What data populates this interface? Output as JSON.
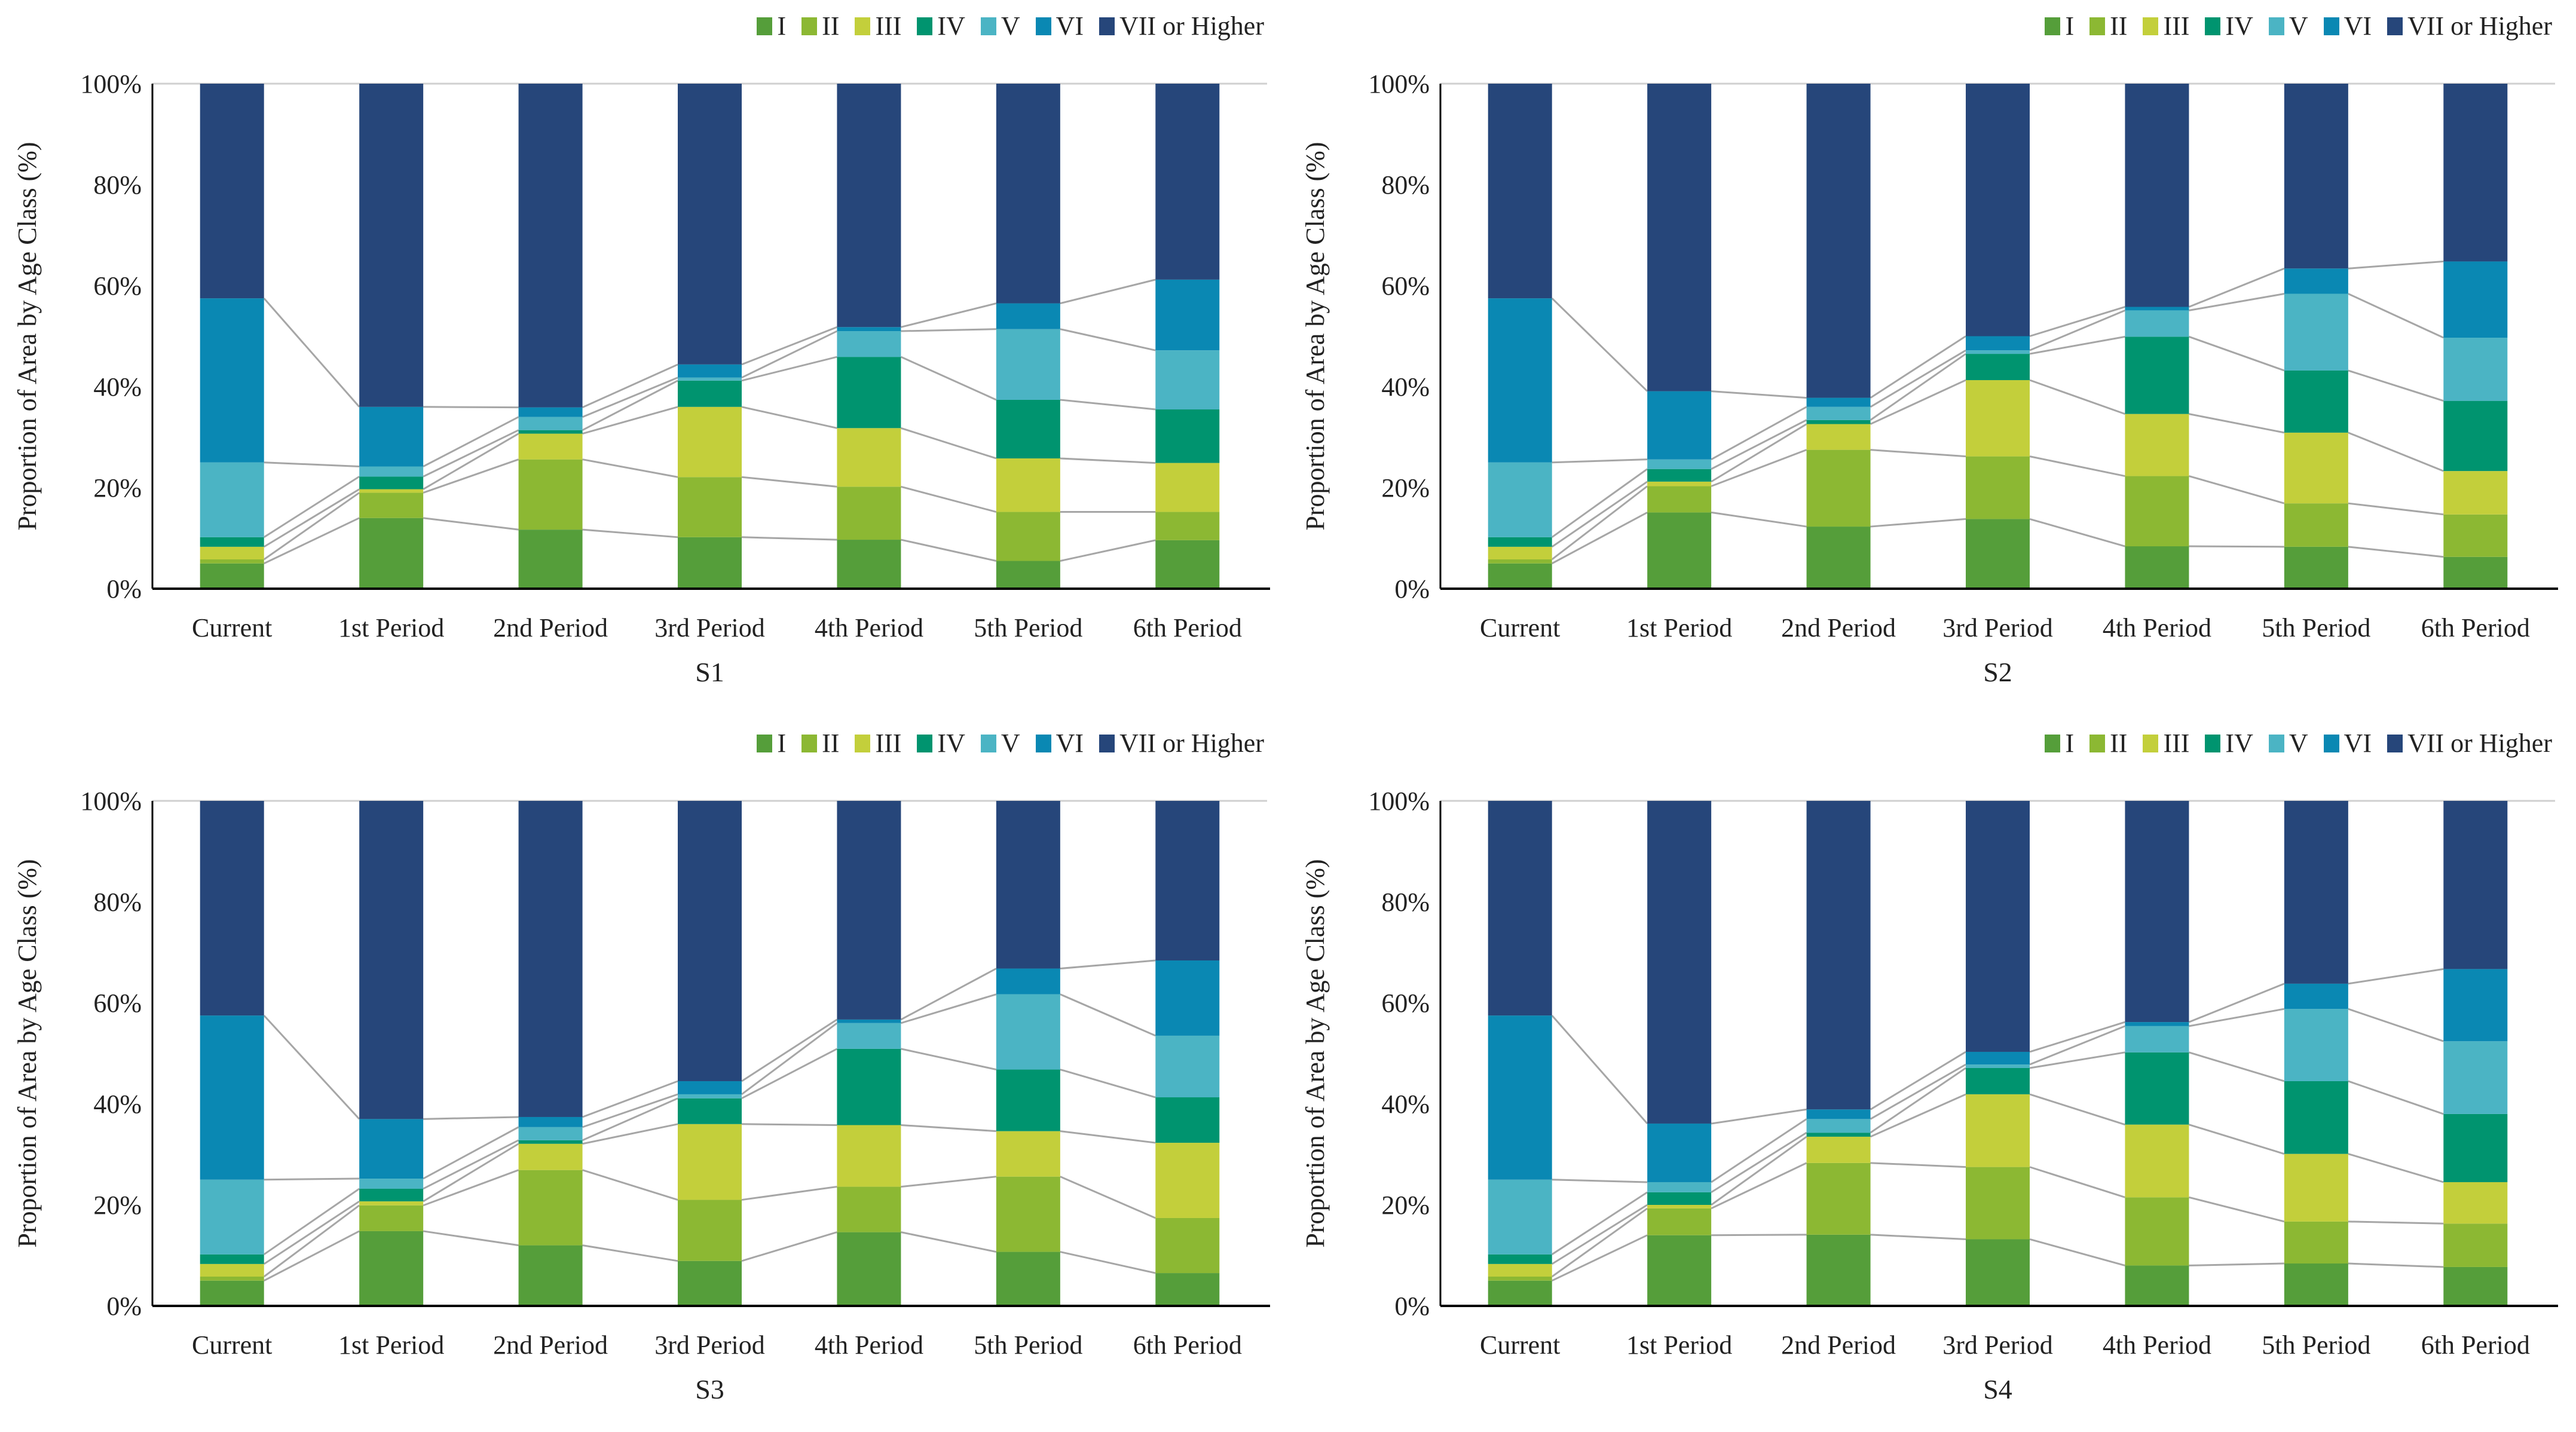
{
  "colors": {
    "I": "#559E3A",
    "II": "#8CB833",
    "III": "#C3CF3B",
    "IV": "#00946F",
    "V": "#4BB4C4",
    "VI": "#0A88B3",
    "VII or Higher": "#26467A",
    "connector": "#A6A6A6",
    "axis": "#000000"
  },
  "chart_data": [
    {
      "type": "bar",
      "stacked": true,
      "title": "S1",
      "ylabel": "Proportion of Area by Age Class (%)",
      "ylim": [
        0,
        100
      ],
      "yticks": [
        "0%",
        "20%",
        "40%",
        "60%",
        "80%",
        "100%"
      ],
      "legend_position": "top-right",
      "categories": [
        "Current",
        "1st Period",
        "2nd Period",
        "3rd Period",
        "4th Period",
        "5th Period",
        "6th Period"
      ],
      "series": [
        {
          "name": "I",
          "values": [
            5,
            14,
            11.7,
            10.2,
            9.7,
            5.5,
            9.6
          ]
        },
        {
          "name": "II",
          "values": [
            0.8,
            5,
            13.9,
            11.9,
            10.5,
            9.7,
            5.6
          ]
        },
        {
          "name": "III",
          "values": [
            2.5,
            0.7,
            5.1,
            13.9,
            11.6,
            10.6,
            9.7
          ]
        },
        {
          "name": "IV",
          "values": [
            1.9,
            2.5,
            0.7,
            5.2,
            14.1,
            11.6,
            10.6
          ]
        },
        {
          "name": "V",
          "values": [
            14.8,
            2,
            2.6,
            0.6,
            5.1,
            14,
            11.7
          ]
        },
        {
          "name": "VI",
          "values": [
            32.5,
            11.8,
            1.9,
            2.6,
            0.8,
            5.1,
            14
          ]
        },
        {
          "name": "VII or Higher",
          "values": [
            42.5,
            64,
            64.1,
            55.6,
            48.2,
            43.5,
            38.8
          ]
        }
      ]
    },
    {
      "type": "bar",
      "stacked": true,
      "title": "S2",
      "ylabel": "Proportion of Area by Age Class (%)",
      "ylim": [
        0,
        100
      ],
      "yticks": [
        "0%",
        "20%",
        "40%",
        "60%",
        "80%",
        "100%"
      ],
      "legend_position": "top-right",
      "categories": [
        "Current",
        "1st Period",
        "2nd Period",
        "3rd Period",
        "4th Period",
        "5th Period",
        "6th Period"
      ],
      "series": [
        {
          "name": "I",
          "values": [
            5,
            15.1,
            12.3,
            13.8,
            8.4,
            8.3,
            6.3
          ]
        },
        {
          "name": "II",
          "values": [
            0.8,
            5.2,
            15.2,
            12.4,
            13.9,
            8.6,
            8.4
          ]
        },
        {
          "name": "III",
          "values": [
            2.5,
            0.9,
            5.1,
            15.1,
            12.3,
            14,
            8.6
          ]
        },
        {
          "name": "IV",
          "values": [
            1.9,
            2.5,
            0.8,
            5.2,
            15.3,
            12.3,
            13.9
          ]
        },
        {
          "name": "V",
          "values": [
            14.8,
            1.9,
            2.6,
            0.7,
            5.2,
            15.2,
            12.5
          ]
        },
        {
          "name": "VI",
          "values": [
            32.5,
            13.5,
            1.8,
            2.8,
            0.7,
            5,
            15.1
          ]
        },
        {
          "name": "VII or Higher",
          "values": [
            42.5,
            60.9,
            62.2,
            50,
            44.2,
            36.6,
            35.2
          ]
        }
      ]
    },
    {
      "type": "bar",
      "stacked": true,
      "title": "S3",
      "ylabel": "Proportion of Area by Age Class (%)",
      "ylim": [
        0,
        100
      ],
      "yticks": [
        "0%",
        "20%",
        "40%",
        "60%",
        "80%",
        "100%"
      ],
      "legend_position": "top-right",
      "categories": [
        "Current",
        "1st Period",
        "2nd Period",
        "3rd Period",
        "4th Period",
        "5th Period",
        "6th Period"
      ],
      "series": [
        {
          "name": "I",
          "values": [
            5,
            14.8,
            12,
            8.9,
            14.6,
            10.7,
            6.5
          ]
        },
        {
          "name": "II",
          "values": [
            0.8,
            5.1,
            14.9,
            12.1,
            9,
            14.9,
            10.9
          ]
        },
        {
          "name": "III",
          "values": [
            2.5,
            0.8,
            5.2,
            15,
            12.2,
            9,
            14.9
          ]
        },
        {
          "name": "IV",
          "values": [
            1.9,
            2.5,
            0.7,
            5.1,
            15.1,
            12.2,
            9
          ]
        },
        {
          "name": "V",
          "values": [
            14.8,
            2,
            2.6,
            0.8,
            5.1,
            14.9,
            12.2
          ]
        },
        {
          "name": "VI",
          "values": [
            32.5,
            11.8,
            2,
            2.6,
            0.7,
            5.1,
            14.9
          ]
        },
        {
          "name": "VII or Higher",
          "values": [
            42.5,
            63,
            62.6,
            55.5,
            43.3,
            33.2,
            31.6
          ]
        }
      ]
    },
    {
      "type": "bar",
      "stacked": true,
      "title": "S4",
      "ylabel": "Proportion of Area by Age Class (%)",
      "ylim": [
        0,
        100
      ],
      "yticks": [
        "0%",
        "20%",
        "40%",
        "60%",
        "80%",
        "100%"
      ],
      "legend_position": "top-right",
      "categories": [
        "Current",
        "1st Period",
        "2nd Period",
        "3rd Period",
        "4th Period",
        "5th Period",
        "6th Period"
      ],
      "series": [
        {
          "name": "I",
          "values": [
            5,
            14,
            14.1,
            13.2,
            8,
            8.4,
            7.7
          ]
        },
        {
          "name": "II",
          "values": [
            0.8,
            5.3,
            14.2,
            14.3,
            13.5,
            8.3,
            8.6
          ]
        },
        {
          "name": "III",
          "values": [
            2.5,
            0.7,
            5.2,
            14.4,
            14.4,
            13.4,
            8.2
          ]
        },
        {
          "name": "IV",
          "values": [
            1.9,
            2.5,
            0.8,
            5.2,
            14.3,
            14.4,
            13.5
          ]
        },
        {
          "name": "V",
          "values": [
            14.8,
            2,
            2.7,
            0.7,
            5.2,
            14.3,
            14.4
          ]
        },
        {
          "name": "VI",
          "values": [
            32.5,
            11.6,
            1.9,
            2.5,
            0.8,
            5,
            14.3
          ]
        },
        {
          "name": "VII or Higher",
          "values": [
            42.5,
            63.9,
            61.1,
            49.7,
            43.8,
            36.2,
            33.3
          ]
        }
      ]
    }
  ]
}
